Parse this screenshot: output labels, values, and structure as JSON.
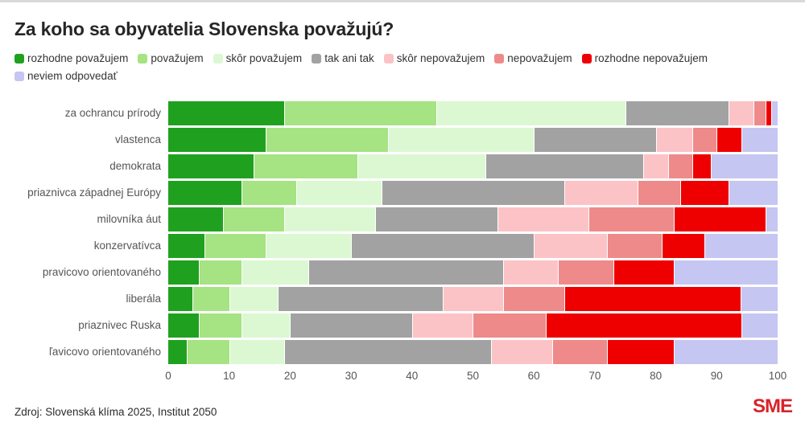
{
  "title": "Za koho sa obyvatelia Slovenska považujú?",
  "footer": {
    "source": "Zdroj: Slovenská klíma 2025, Institut 2050",
    "logo": "SME"
  },
  "chart_data": {
    "type": "bar",
    "orientation": "horizontal-stacked",
    "xlabel": "",
    "ylabel": "",
    "xlim": [
      0,
      100
    ],
    "x_ticks": [
      0,
      10,
      20,
      30,
      40,
      50,
      60,
      70,
      80,
      90,
      100
    ],
    "legend_position": "top",
    "grid": false,
    "categories": [
      "za ochrancu prírody",
      "vlastenca",
      "demokrata",
      "priaznivca západnej Európy",
      "milovníka áut",
      "konzervatívca",
      "pravicovo orientovaného",
      "liberála",
      "priaznivec Ruska",
      "ľavicovo orientovaného"
    ],
    "series": [
      {
        "name": "rozhodne považujem",
        "color": "#1fa11f",
        "values": [
          19,
          16,
          14,
          12,
          9,
          6,
          5,
          4,
          5,
          3
        ]
      },
      {
        "name": "považujem",
        "color": "#a6e383",
        "values": [
          25,
          20,
          17,
          9,
          10,
          10,
          7,
          6,
          7,
          7
        ]
      },
      {
        "name": "skôr považujem",
        "color": "#dbf8d2",
        "values": [
          31,
          24,
          21,
          14,
          15,
          14,
          11,
          8,
          8,
          9
        ]
      },
      {
        "name": "tak ani tak",
        "color": "#a2a2a2",
        "values": [
          17,
          20,
          26,
          30,
          20,
          30,
          32,
          27,
          20,
          34
        ]
      },
      {
        "name": "skôr nepovažujem",
        "color": "#fcc3c6",
        "values": [
          4,
          6,
          4,
          12,
          15,
          12,
          9,
          10,
          10,
          10
        ]
      },
      {
        "name": "nepovažujem",
        "color": "#ee8a8a",
        "values": [
          2,
          4,
          4,
          7,
          14,
          9,
          9,
          10,
          12,
          9
        ]
      },
      {
        "name": "rozhodne nepovažujem",
        "color": "#ee0000",
        "values": [
          1,
          4,
          3,
          8,
          15,
          7,
          10,
          29,
          32,
          11
        ]
      },
      {
        "name": "neviem odpovedať",
        "color": "#c6c6f2",
        "values": [
          1,
          6,
          11,
          8,
          2,
          12,
          17,
          6,
          6,
          17
        ]
      }
    ]
  }
}
